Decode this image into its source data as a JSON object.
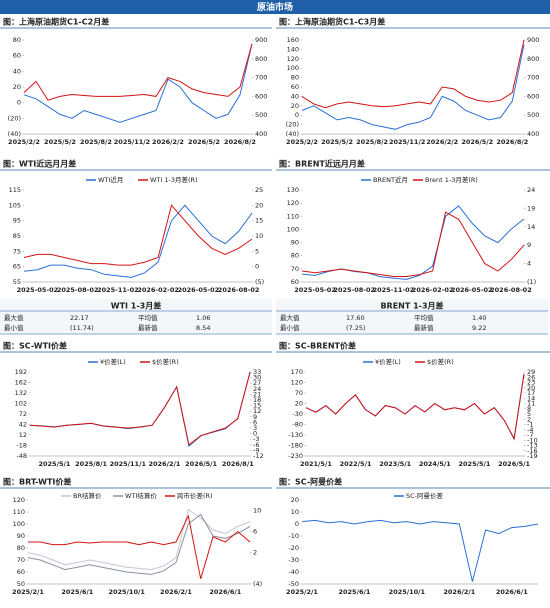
{
  "header": "原油市场",
  "chart_data": [
    {
      "type": "line",
      "title": "图：上海原油期货C1-C2月差",
      "categories": [
        "2025/2/2",
        null,
        null,
        "2025/5/2",
        null,
        null,
        "2025/8/2",
        null,
        null,
        "2025/11/2",
        null,
        null,
        "2026/2/2",
        null,
        null,
        "2026/5/2",
        null,
        null,
        "2026/8/2",
        null
      ],
      "series": [
        {
          "color": "#2a6fd6",
          "values": [
            10,
            5,
            -5,
            -15,
            -20,
            -10,
            -15,
            -20,
            -25,
            -20,
            -15,
            -10,
            30,
            20,
            0,
            -10,
            -20,
            -15,
            10,
            75
          ]
        },
        {
          "color": "#d41414",
          "axis": "y2",
          "values": [
            620,
            680,
            580,
            600,
            610,
            605,
            600,
            600,
            600,
            605,
            610,
            600,
            700,
            680,
            640,
            620,
            610,
            600,
            650,
            880
          ]
        }
      ],
      "ylim": [
        -40,
        80
      ],
      "yticks": [
        80,
        60,
        40,
        20,
        0,
        {
          "value": -20,
          "label": "(20)"
        },
        {
          "value": -40,
          "label": "(40)"
        }
      ],
      "y2lim": [
        400,
        900
      ],
      "y2ticks": [
        900,
        800,
        700,
        600,
        500,
        400
      ]
    },
    {
      "type": "line",
      "title": "图：上海原油期货C1-C3月差",
      "categories": [
        "2025/2/2",
        null,
        null,
        "2025/5/2",
        null,
        null,
        "2025/8/2",
        null,
        null,
        "2025/11/2",
        null,
        null,
        "2026/2/2",
        null,
        null,
        "2026/5/2",
        null,
        null,
        "2026/8/2",
        null
      ],
      "series": [
        {
          "color": "#2a6fd6",
          "values": [
            10,
            20,
            5,
            -10,
            -5,
            -10,
            -20,
            -25,
            -30,
            -20,
            -15,
            -5,
            40,
            30,
            10,
            0,
            -10,
            -5,
            30,
            150
          ]
        },
        {
          "color": "#d41414",
          "axis": "y2",
          "values": [
            600,
            560,
            540,
            560,
            570,
            560,
            550,
            545,
            550,
            560,
            570,
            560,
            650,
            640,
            600,
            580,
            570,
            580,
            620,
            900
          ]
        }
      ],
      "ylim": [
        -40,
        160
      ],
      "yticks": [
        160,
        140,
        120,
        100,
        80,
        60,
        40,
        20,
        0,
        {
          "value": -20,
          "label": "(20)"
        },
        {
          "value": -40,
          "label": "(40)"
        }
      ],
      "y2lim": [
        400,
        900
      ],
      "y2ticks": [
        900,
        800,
        700,
        600,
        500,
        400
      ]
    },
    {
      "type": "line",
      "title": "图：WTI近远月月差",
      "categories": [
        null,
        "2025-05-02",
        null,
        null,
        "2025-08-02",
        null,
        null,
        "2025-11-02",
        null,
        null,
        "2026-02-02",
        null,
        null,
        "2026-05-02",
        null,
        null,
        "2026-08-02",
        null
      ],
      "series": [
        {
          "name": "WTI近月",
          "color": "#2a6fd6",
          "values": [
            62,
            63,
            66,
            66,
            64,
            63,
            60,
            59,
            58,
            61,
            68,
            95,
            105,
            95,
            85,
            80,
            88,
            100
          ]
        },
        {
          "name": "WTI 1-3月差(R)",
          "color": "#d41414",
          "axis": "y2",
          "values": [
            3,
            4,
            4,
            3,
            2,
            1,
            1,
            0.5,
            0.5,
            1.5,
            3,
            20,
            15,
            10,
            6,
            4,
            6,
            9
          ]
        }
      ],
      "ylim": [
        55,
        115
      ],
      "yticks": [
        115,
        105,
        95,
        85,
        75,
        65,
        55
      ],
      "y2lim": [
        -5,
        25
      ],
      "y2ticks": [
        25,
        20,
        15,
        10,
        5,
        0,
        {
          "value": -5,
          "label": "(5)"
        }
      ]
    },
    {
      "type": "line",
      "title": "图：BRENT近远月月差",
      "categories": [
        null,
        "2025-05-02",
        null,
        null,
        "2025-08-02",
        null,
        null,
        "2025-11-02",
        null,
        null,
        "2026-02-02",
        null,
        null,
        "2026-05-02",
        null,
        null,
        "2026-08-02",
        null
      ],
      "series": [
        {
          "name": "BRENT近月",
          "color": "#2a6fd6",
          "values": [
            66,
            65,
            68,
            70,
            68,
            67,
            64,
            63,
            62,
            65,
            72,
            110,
            118,
            105,
            95,
            90,
            100,
            108
          ]
        },
        {
          "name": "Brent 1-3月差(R)",
          "color": "#d41414",
          "axis": "y2",
          "values": [
            2,
            1.5,
            2,
            2.5,
            2,
            1.5,
            1,
            0.5,
            0.5,
            1,
            2,
            18,
            16,
            10,
            4,
            2,
            5,
            9
          ]
        }
      ],
      "ylim": [
        60,
        130
      ],
      "yticks": [
        130,
        120,
        110,
        100,
        90,
        80,
        70,
        60
      ],
      "y2lim": [
        -1,
        24
      ],
      "y2ticks": [
        24,
        19,
        14,
        9,
        4,
        {
          "value": -1,
          "label": "(1)"
        }
      ]
    },
    {
      "type": "line",
      "title": "图：SC-WTI价差",
      "categories": [
        null,
        null,
        "2025/5/1",
        null,
        null,
        "2025/8/1",
        null,
        null,
        "2025/11/1",
        null,
        null,
        "2026/2/1",
        null,
        null,
        "2026/5/1",
        null,
        null,
        "2026/8/1",
        null
      ],
      "series": [
        {
          "name": "¥价差(L)",
          "color": "#2a6fd6",
          "values": [
            40,
            38,
            35,
            40,
            42,
            45,
            38,
            35,
            30,
            35,
            40,
            90,
            150,
            -20,
            10,
            20,
            30,
            60,
            190
          ]
        },
        {
          "name": "$价差(R)",
          "color": "#d41414",
          "axis": "y2",
          "values": [
            4.5,
            4,
            3.5,
            4.5,
            5,
            5.5,
            4,
            3.5,
            3,
            3.5,
            4.5,
            14,
            25,
            -6,
            -1,
            1,
            3,
            8,
            33
          ]
        }
      ],
      "ylim": [
        -48,
        192
      ],
      "yticks": [
        192,
        162,
        132,
        102,
        72,
        42,
        12,
        -18,
        -48
      ],
      "y2lim": [
        -12,
        33
      ],
      "y2ticks": [
        33,
        30,
        27,
        24,
        21,
        18,
        15,
        12,
        9,
        6,
        3,
        0,
        -3,
        -6,
        -9,
        -12
      ]
    },
    {
      "type": "line",
      "title": "图：SC-BRENT价差",
      "categories": [
        null,
        "2021/5/1",
        null,
        null,
        null,
        "2022/5/1",
        null,
        null,
        null,
        "2023/5/1",
        null,
        null,
        null,
        "2024/5/1",
        null,
        null,
        null,
        "2025/5/1",
        null,
        null,
        null,
        "2026/5/1",
        null
      ],
      "series": [
        {
          "name": "¥价差(L)",
          "color": "#2a6fd6",
          "values": [
            0,
            -20,
            10,
            -30,
            20,
            60,
            -10,
            -40,
            10,
            0,
            -30,
            10,
            -20,
            20,
            -10,
            0,
            -10,
            20,
            -30,
            0,
            -60,
            -150,
            160
          ]
        },
        {
          "name": "$价差(R)",
          "color": "#d41414",
          "axis": "y2",
          "values": [
            8.6,
            6,
            9.8,
            5,
            11,
            16,
            7.4,
            4,
            9.8,
            8.6,
            5,
            9.8,
            6.2,
            11,
            7.4,
            8.6,
            7.4,
            11,
            5,
            8.6,
            1.4,
            -9,
            28
          ]
        }
      ],
      "ylim": [
        -230,
        170
      ],
      "yticks": [
        170,
        120,
        70,
        20,
        -30,
        -80,
        -130,
        -180,
        -230
      ],
      "y2lim": [
        -19,
        29
      ],
      "y2ticks": [
        29,
        26,
        23,
        20,
        17,
        14,
        11,
        8,
        5,
        2,
        -1,
        -4,
        -7,
        -10,
        -13,
        -16,
        -19
      ]
    },
    {
      "type": "line",
      "title": "图：BRT-WTI价差",
      "categories": [
        "2025/2/1",
        null,
        null,
        null,
        "2025/6/1",
        null,
        null,
        null,
        "2025/10/1",
        null,
        null,
        null,
        "2026/2/1",
        null,
        null,
        null,
        "2026/6/1",
        null,
        null
      ],
      "series": [
        {
          "name": "BR结算价",
          "color": "#c4c6d0",
          "values": [
            76,
            74,
            70,
            66,
            68,
            70,
            68,
            66,
            64,
            63,
            62,
            65,
            72,
            112,
            105,
            95,
            92,
            98,
            102
          ]
        },
        {
          "name": "WTI结算价",
          "color": "#8890a4",
          "values": [
            72,
            70,
            66,
            62,
            64,
            66,
            64,
            62,
            60,
            59,
            58,
            61,
            68,
            100,
            108,
            90,
            88,
            92,
            98
          ]
        },
        {
          "name": "跨市价差(R)",
          "color": "#d41414",
          "axis": "y2",
          "values": [
            4,
            4,
            3.5,
            3.5,
            4,
            3.8,
            4,
            4,
            4,
            3.5,
            4,
            3.5,
            4,
            9,
            -3,
            5,
            4,
            6,
            4
          ]
        }
      ],
      "ylim": [
        50,
        120
      ],
      "yticks": [
        120,
        110,
        100,
        90,
        80,
        70,
        60,
        50
      ],
      "y2lim": [
        -4,
        12
      ],
      "y2ticks": [
        10,
        6,
        2,
        {
          "value": -4,
          "label": "(4)"
        }
      ]
    },
    {
      "type": "line",
      "title": "图：SC-阿曼价差",
      "categories": [
        "2025/2/1",
        null,
        null,
        null,
        "2025/6/1",
        null,
        null,
        null,
        "2025/10/1",
        null,
        null,
        null,
        "2026/2/1",
        null,
        null,
        null,
        "2026/6/1",
        null,
        null
      ],
      "series": [
        {
          "name": "SC-阿曼价差",
          "color": "#2a6fd6",
          "values": [
            2,
            3,
            1,
            2,
            0,
            2,
            3,
            1,
            2,
            0,
            2,
            1,
            0,
            -48,
            -5,
            -8,
            -3,
            -2,
            0
          ]
        }
      ],
      "ylim": [
        -50,
        20
      ],
      "yticks": [
        20,
        10,
        0,
        -10,
        -20,
        -30,
        -40,
        -50
      ]
    }
  ],
  "tables": [
    {
      "title": "WTI 1-3月差",
      "rows": [
        [
          "最大值",
          "22.17",
          "平均值",
          "1.06"
        ],
        [
          "最小值",
          "(11.74)",
          "最新值",
          "8.54"
        ]
      ]
    },
    {
      "title": "BRENT 1-3月差",
      "rows": [
        [
          "最大值",
          "17.60",
          "平均值",
          "1.40"
        ],
        [
          "最小值",
          "(7.25)",
          "最新值",
          "9.22"
        ]
      ]
    }
  ]
}
